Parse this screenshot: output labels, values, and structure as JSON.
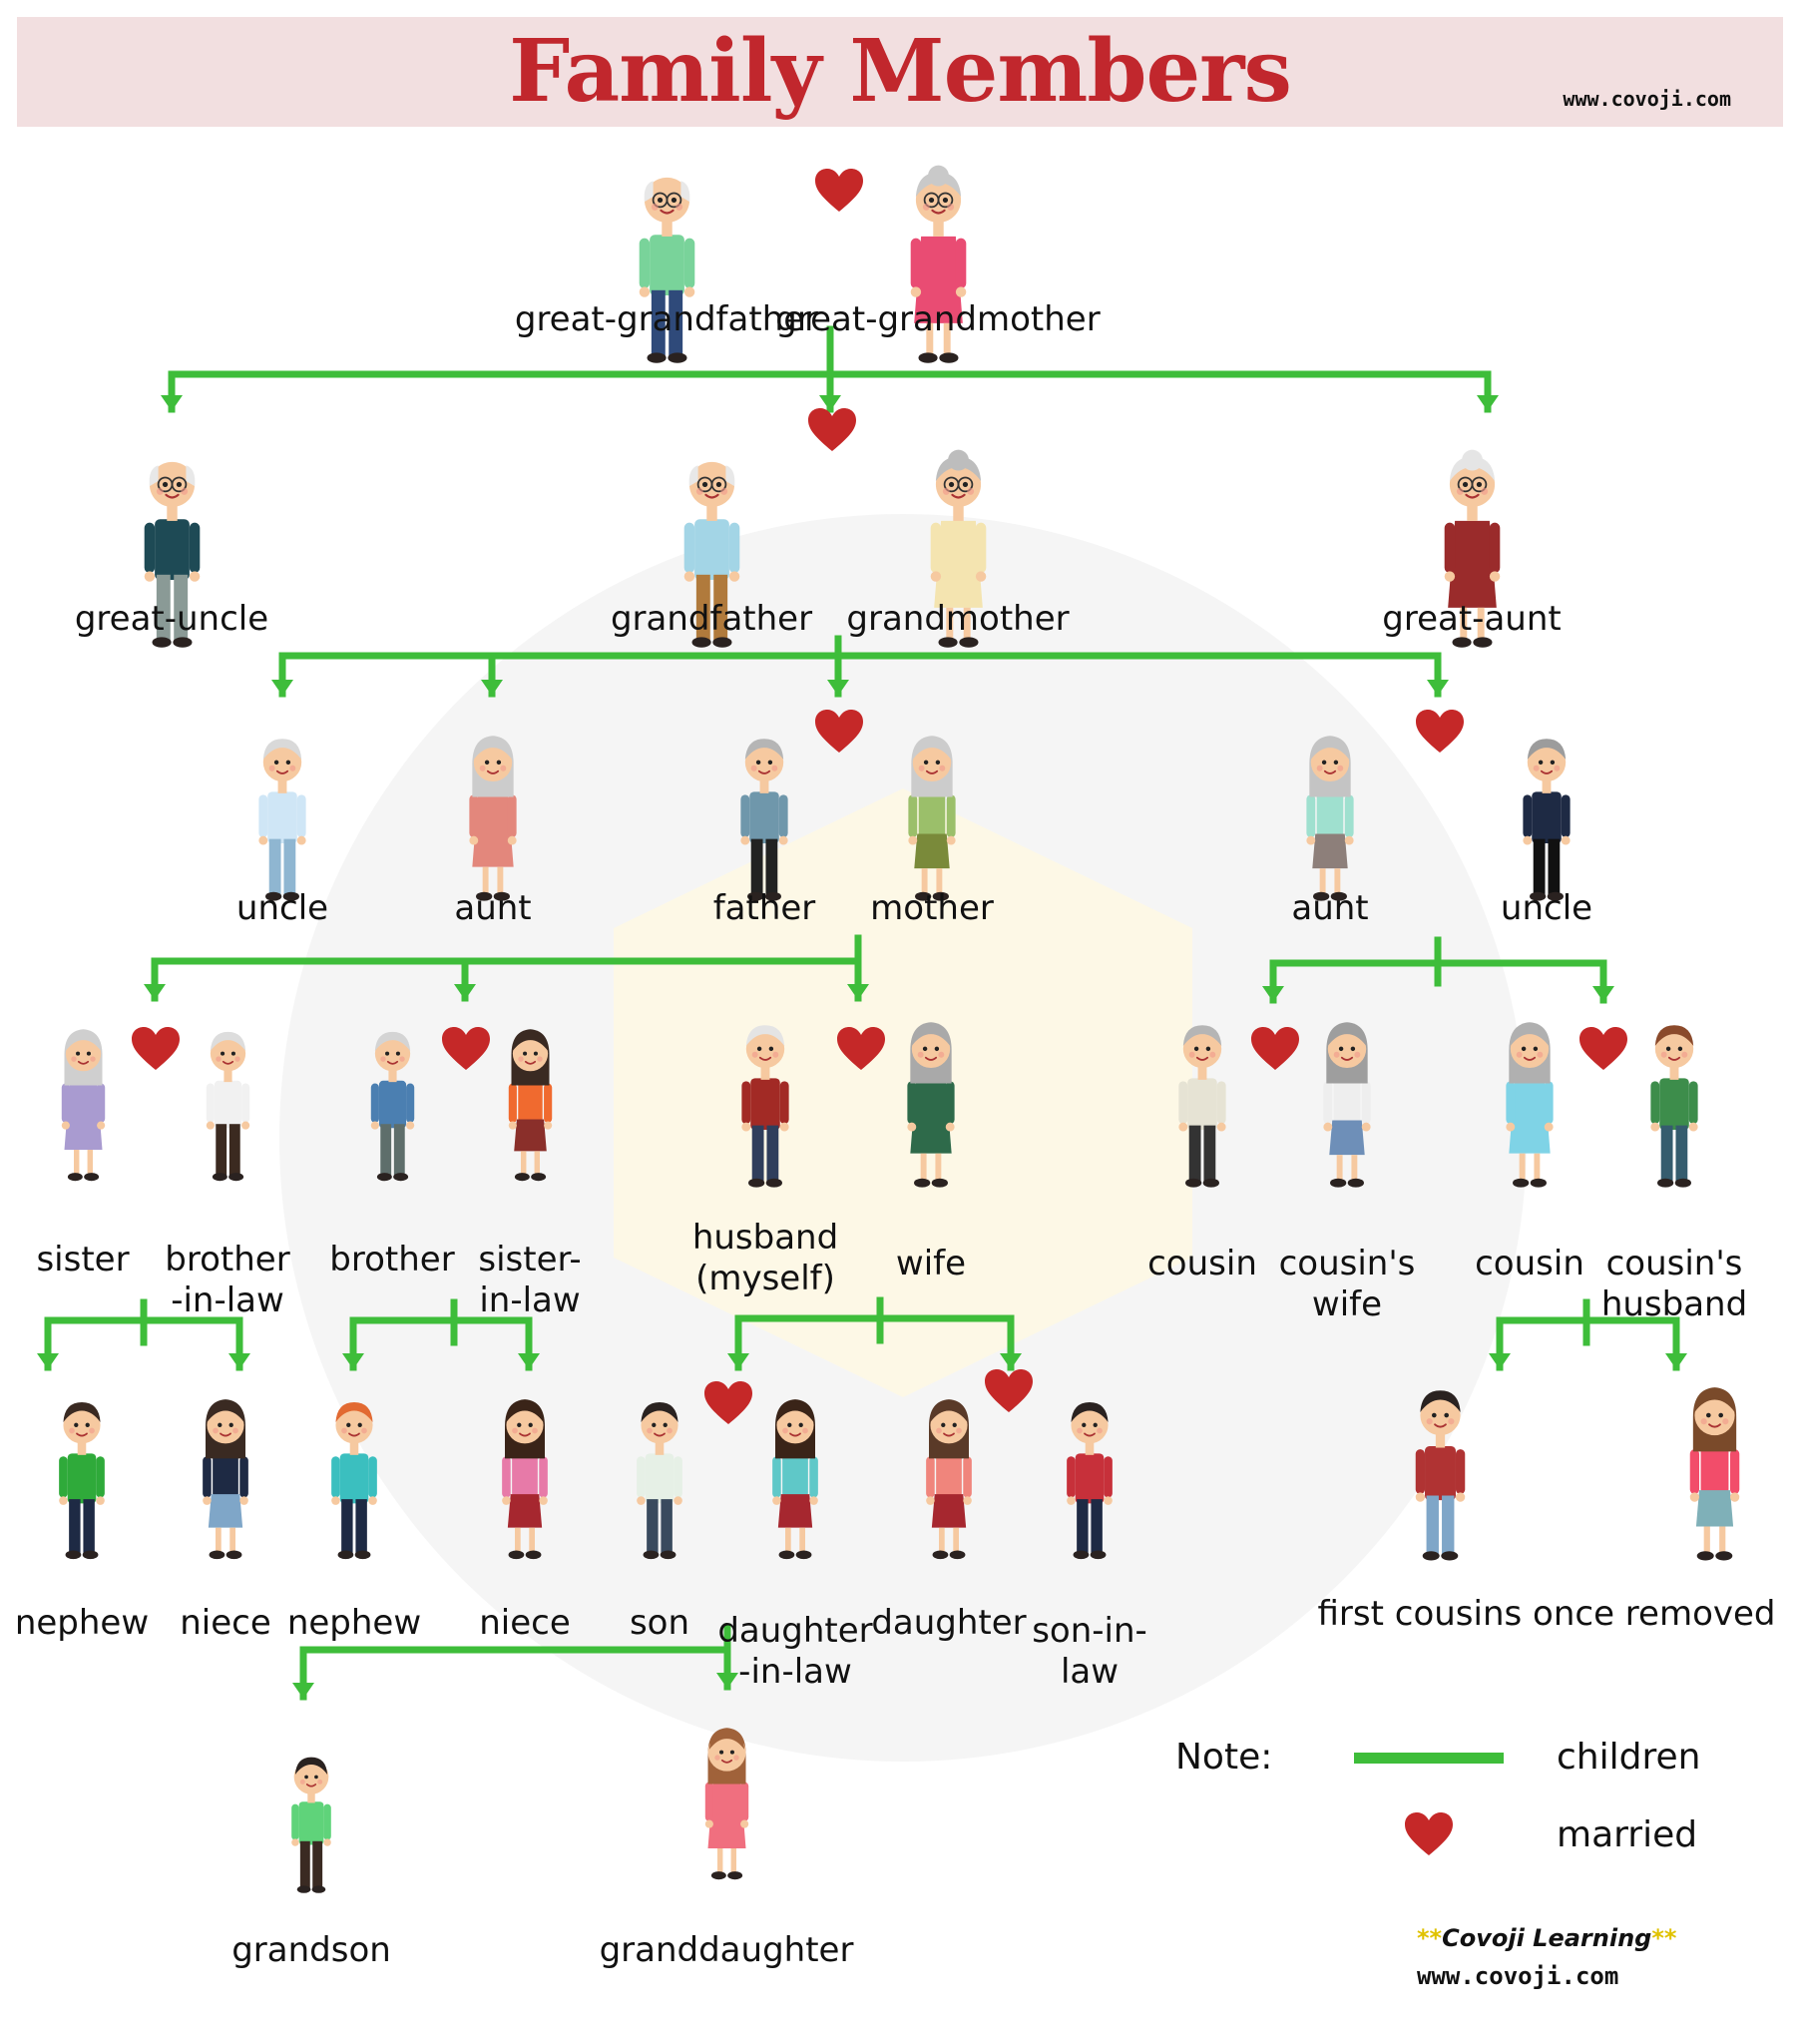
{
  "header": {
    "title": "Family Members",
    "website": "www.covoji.com"
  },
  "colors": {
    "line": "#3ebd3a",
    "heart": "#c52828",
    "title": "#c1272d",
    "banner": "#f2dfe0"
  },
  "members": [
    {
      "id": "great-grandfather",
      "label": "great-grandfather",
      "look": "elder-man",
      "shirt": "#79d39a",
      "pants": "#2f4a7a",
      "hair": "#e8e8e8"
    },
    {
      "id": "great-grandmother",
      "label": "great-grandmother",
      "look": "elder-woman",
      "shirt": "#e94c73",
      "pants": "#e94c73",
      "hair": "#c9c9c9"
    },
    {
      "id": "great-uncle",
      "label": "great-uncle",
      "look": "elder-man",
      "shirt": "#1e4a55",
      "pants": "#8a9a96",
      "hair": "#e8e8e8"
    },
    {
      "id": "grandfather",
      "label": "grandfather",
      "look": "elder-man",
      "shirt": "#a3d5e6",
      "pants": "#b07a3c",
      "hair": "#e8e8e8"
    },
    {
      "id": "grandmother",
      "label": "grandmother",
      "look": "elder-woman",
      "shirt": "#f4e4b0",
      "pants": "#d77fb5",
      "hair": "#bdbdbd"
    },
    {
      "id": "great-aunt",
      "label": "great-aunt",
      "look": "elder-woman",
      "shirt": "#9a2b2b",
      "pants": "#9a2b2b",
      "hair": "#e5e5e5"
    },
    {
      "id": "uncle-1",
      "label": "uncle",
      "look": "man",
      "shirt": "#cfe6f6",
      "pants": "#8fb6d1",
      "hair": "#d9d9d9"
    },
    {
      "id": "aunt-1",
      "label": "aunt",
      "look": "woman",
      "shirt": "#e3877c",
      "pants": "#e3877c",
      "hair": "#cccccc"
    },
    {
      "id": "father",
      "label": "father",
      "look": "man",
      "shirt": "#6f97ab",
      "pants": "#222222",
      "hair": "#b5b5b5"
    },
    {
      "id": "mother",
      "label": "mother",
      "look": "woman",
      "shirt": "#9bbf6a",
      "pants": "#7a8a3a",
      "hair": "#cccccc"
    },
    {
      "id": "aunt-2",
      "label": "aunt",
      "look": "woman",
      "shirt": "#9fe0cf",
      "pants": "#8d7f7a",
      "hair": "#c4c4c4"
    },
    {
      "id": "uncle-2",
      "label": "uncle",
      "look": "man",
      "shirt": "#1e2a44",
      "pants": "#111111",
      "hair": "#9c9c9c"
    },
    {
      "id": "sister",
      "label": "sister",
      "look": "woman",
      "shirt": "#a99bd0",
      "pants": "#a99bd0",
      "hair": "#cfcfcf"
    },
    {
      "id": "brother-in-law",
      "label": "brother\n-in-law",
      "look": "man",
      "shirt": "#f1f1f1",
      "pants": "#3b2a20",
      "hair": "#dddddd"
    },
    {
      "id": "brother",
      "label": "brother",
      "look": "man",
      "shirt": "#4b7fb1",
      "pants": "#5e6e6b",
      "hair": "#d4d4d4"
    },
    {
      "id": "sister-in-law",
      "label": "sister-\nin-law",
      "look": "woman",
      "shirt": "#f06a2f",
      "pants": "#8a2f2a",
      "hair": "#3a2a22"
    },
    {
      "id": "husband-myself",
      "label": "husband\n(myself)",
      "look": "man",
      "shirt": "#a22a25",
      "pants": "#2f3e5c",
      "hair": "#e4e4e4"
    },
    {
      "id": "wife",
      "label": "wife",
      "look": "woman",
      "shirt": "#2e6a4a",
      "pants": "#2e6a4a",
      "hair": "#a9a9a9"
    },
    {
      "id": "cousin-1",
      "label": "cousin",
      "look": "man",
      "shirt": "#e6e3d4",
      "pants": "#333333",
      "hair": "#b5b5b5"
    },
    {
      "id": "cousins-wife",
      "label": "cousin's\nwife",
      "look": "woman",
      "shirt": "#eeeeee",
      "pants": "#6e8fb8",
      "hair": "#9e9e9e"
    },
    {
      "id": "cousin-2",
      "label": "cousin",
      "look": "woman",
      "shirt": "#7fd3e6",
      "pants": "#7fd3e6",
      "hair": "#b0b0b0"
    },
    {
      "id": "cousins-husband",
      "label": "cousin's\nhusband",
      "look": "man",
      "shirt": "#3d8d4b",
      "pants": "#355c6e",
      "hair": "#8b4a2b"
    },
    {
      "id": "nephew-1",
      "label": "nephew",
      "look": "man",
      "shirt": "#2faa3a",
      "pants": "#1e2a44",
      "hair": "#3a2a22"
    },
    {
      "id": "niece-1",
      "label": "niece",
      "look": "woman",
      "shirt": "#1e2a44",
      "pants": "#7fa6c8",
      "hair": "#3a2a22"
    },
    {
      "id": "nephew-2",
      "label": "nephew",
      "look": "man",
      "shirt": "#3bbfbf",
      "pants": "#1e2a44",
      "hair": "#e26a32"
    },
    {
      "id": "niece-2",
      "label": "niece",
      "look": "woman",
      "shirt": "#e77aa8",
      "pants": "#a6272f",
      "hair": "#3a2418"
    },
    {
      "id": "son",
      "label": "son",
      "look": "man",
      "shirt": "#e6f0e6",
      "pants": "#394a5e",
      "hair": "#2a2220"
    },
    {
      "id": "daughter-in-law",
      "label": "daughter\n-in-law",
      "look": "woman",
      "shirt": "#5fc8c8",
      "pants": "#a6272f",
      "hair": "#3a2418"
    },
    {
      "id": "daughter",
      "label": "daughter",
      "look": "woman",
      "shirt": "#f0857c",
      "pants": "#a6272f",
      "hair": "#5a3a28"
    },
    {
      "id": "son-in-law",
      "label": "son-in-\nlaw",
      "look": "man",
      "shirt": "#c7303a",
      "pants": "#1e2a44",
      "hair": "#2a2220"
    },
    {
      "id": "first-cousin-boy",
      "label": "",
      "look": "man",
      "shirt": "#b03333",
      "pants": "#7fa6c8",
      "hair": "#2a2220"
    },
    {
      "id": "first-cousin-girl",
      "label": "",
      "look": "woman",
      "shirt": "#f24d6a",
      "pants": "#7fb0b8",
      "hair": "#7a4a2a"
    },
    {
      "id": "grandson",
      "label": "grandson",
      "look": "boy",
      "shirt": "#5fd37a",
      "pants": "#3a2a22",
      "hair": "#2a2220"
    },
    {
      "id": "granddaughter",
      "label": "granddaughter",
      "look": "girl",
      "shirt": "#f06f7f",
      "pants": "#f06f7f",
      "hair": "#a0623a"
    }
  ],
  "group_labels": {
    "first_cousins": "first cousins once removed"
  },
  "legend": {
    "note": "Note:",
    "children": "children",
    "married": "married"
  },
  "branding": {
    "name": "Covoji Learning",
    "stars": "**",
    "website": "www.covoji.com"
  }
}
